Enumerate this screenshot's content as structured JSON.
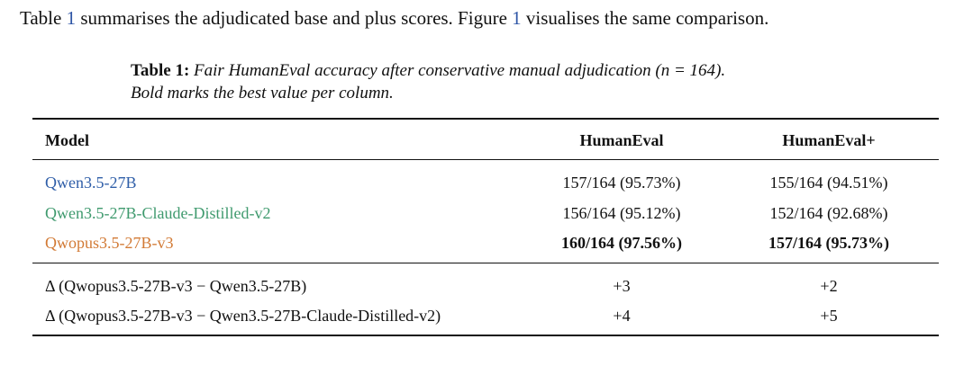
{
  "intro": {
    "p1": "Table ",
    "ref1": "1",
    "p2": " summarises the adjudicated base and plus scores. Figure ",
    "ref2": "1",
    "p3": " visualises the same comparison."
  },
  "caption": {
    "label": "Table 1:",
    "line1": "Fair HumanEval accuracy after conservative manual adjudication (",
    "math": "n = 164",
    "line1_end": ").",
    "line2": "Bold marks the best value per column."
  },
  "colors": {
    "qwen": "#2f5ea8",
    "distilled": "#3f9a6e",
    "qwopus": "#d27a35",
    "ref": "#2f56a6"
  },
  "table": {
    "headers": [
      "Model",
      "HumanEval",
      "HumanEval+"
    ],
    "rows": [
      {
        "model": "Qwen3.5-27B",
        "he": "157/164 (95.73%)",
        "hep": "155/164 (94.51%)"
      },
      {
        "model": "Qwen3.5-27B-Claude-Distilled-v2",
        "he": "156/164 (95.12%)",
        "hep": "152/164 (92.68%)"
      },
      {
        "model": "Qwopus3.5-27B-v3",
        "he": "160/164 (97.56%)",
        "hep": "157/164 (95.73%)"
      }
    ],
    "deltas": [
      {
        "label": "Δ (Qwopus3.5-27B-v3 − Qwen3.5-27B)",
        "he": "+3",
        "hep": "+2"
      },
      {
        "label": "Δ (Qwopus3.5-27B-v3 − Qwen3.5-27B-Claude-Distilled-v2)",
        "he": "+4",
        "hep": "+5"
      }
    ]
  }
}
